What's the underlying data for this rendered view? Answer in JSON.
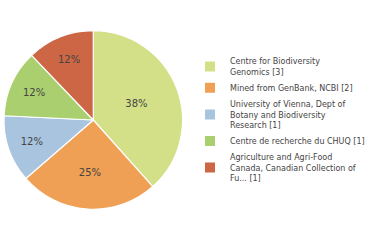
{
  "chart_data": {
    "type": "pie",
    "categories": [
      "Centre for Biodiversity\nGenomics [3]",
      "Mined from GenBank, NCBI [2]",
      "University of Vienna, Dept of\nBotany and Biodiversity\nResearch [1]",
      "Centre de recherche du CHUQ [1]",
      "Agriculture and Agri-Food\nCanada, Canadian Collection of\nFu... [1]"
    ],
    "values": [
      38,
      25,
      12,
      12,
      12
    ],
    "value_labels": [
      "38%",
      "25%",
      "12%",
      "12%",
      "12%"
    ],
    "colors": [
      "#d4e087",
      "#f0a054",
      "#a8c4df",
      "#aacf6e",
      "#cc6644"
    ],
    "data_labels": true,
    "legend": "right"
  }
}
